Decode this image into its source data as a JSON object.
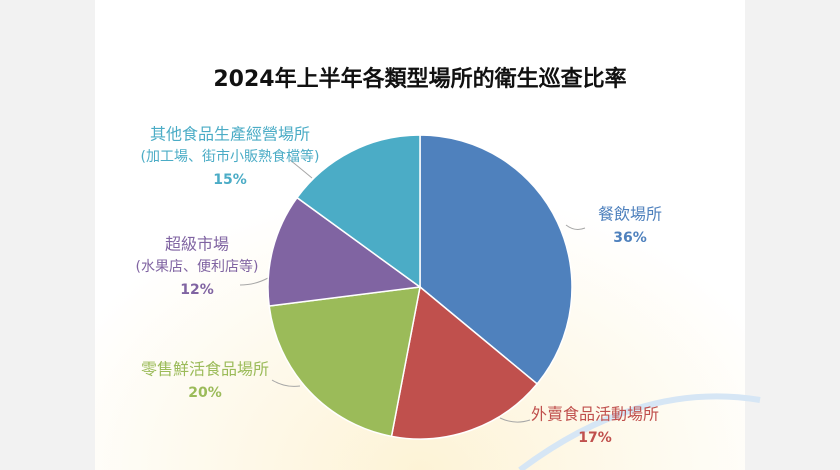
{
  "chart_data": {
    "type": "pie",
    "title": "2024年上半年各類型場所的衛生巡查比率",
    "categories": [
      "餐飲場所",
      "外賣食品活動場所",
      "零售鮮活食品場所",
      "超級市場",
      "其他食品生產經營場所"
    ],
    "category_notes": [
      null,
      null,
      null,
      "(水果店、便利店等)",
      "(加工場、街市小販熟食檔等)"
    ],
    "values": [
      36,
      17,
      20,
      12,
      15
    ],
    "value_labels": [
      "36%",
      "17%",
      "20%",
      "12%",
      "15%"
    ],
    "colors": [
      "#4f81bd",
      "#c0504d",
      "#9bbb59",
      "#8064a2",
      "#4bacc6"
    ]
  }
}
